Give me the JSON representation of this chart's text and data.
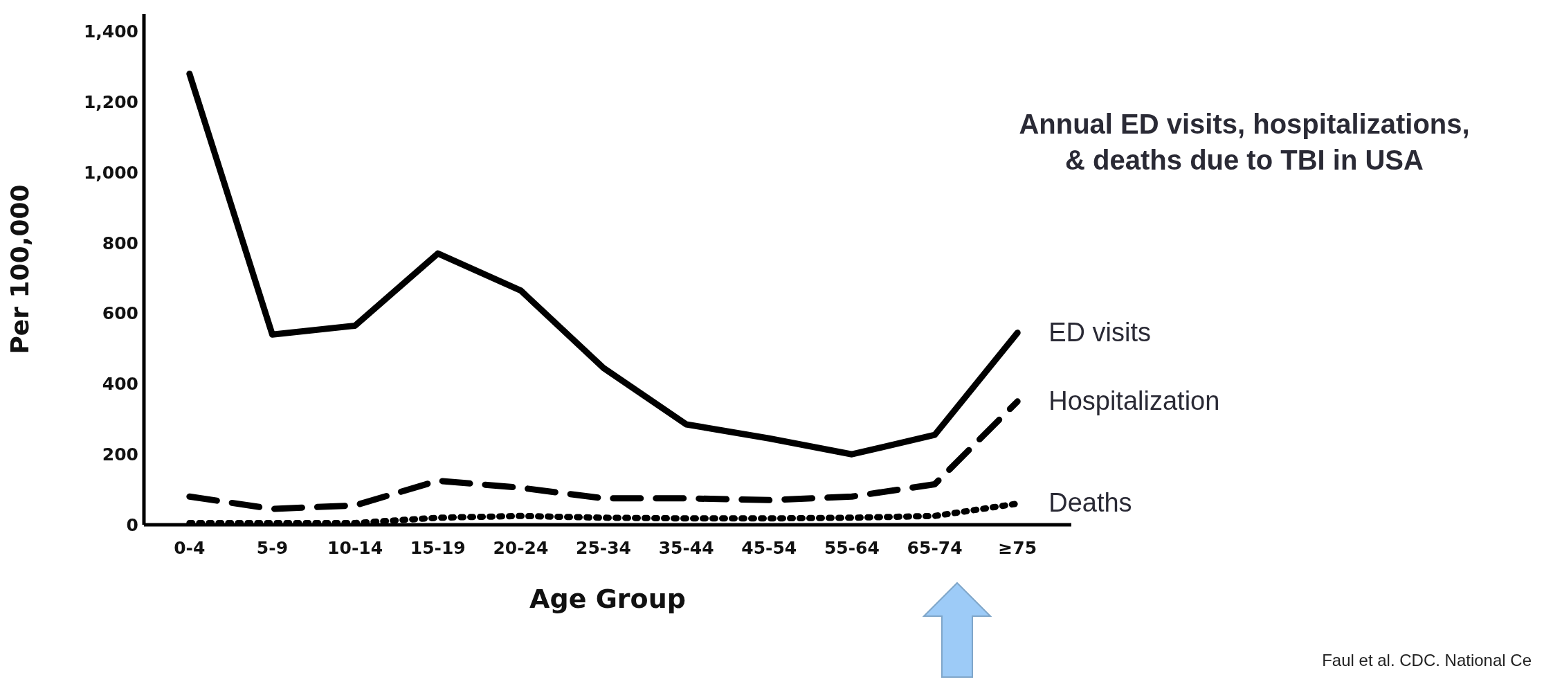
{
  "chart_data": {
    "type": "line",
    "title": "Annual ED visits, hospitalizations,\n& deaths due to TBI in USA",
    "xlabel": "Age Group",
    "ylabel": "Per 100,000",
    "categories": [
      "0-4",
      "5-9",
      "10-14",
      "15-19",
      "20-24",
      "25-34",
      "35-44",
      "45-54",
      "55-64",
      "65-74",
      "≥75"
    ],
    "series": [
      {
        "name": "ED visits",
        "color": "#000000",
        "line_style": "solid",
        "values": [
          1280,
          540,
          565,
          770,
          665,
          445,
          285,
          245,
          200,
          255,
          545
        ]
      },
      {
        "name": "Hospitalization",
        "color": "#000000",
        "line_style": "dashed",
        "values": [
          80,
          45,
          55,
          125,
          105,
          75,
          75,
          70,
          80,
          115,
          350
        ]
      },
      {
        "name": "Deaths",
        "color": "#000000",
        "line_style": "dotted",
        "values": [
          5,
          5,
          5,
          20,
          25,
          20,
          18,
          18,
          20,
          25,
          60
        ]
      }
    ],
    "ylim": [
      0,
      1450
    ],
    "yticks": [
      0,
      {
        "value": 200,
        "label": "200"
      },
      {
        "value": 400,
        "label": "400"
      },
      {
        "value": 600,
        "label": "600"
      },
      {
        "value": 800,
        "label": "800"
      },
      {
        "value": 1000,
        "label": "1,000"
      },
      {
        "value": 1200,
        "label": "1,200"
      },
      {
        "value": 1400,
        "label": "1,400"
      }
    ],
    "grid": false,
    "marker": "none",
    "annotations": [
      "Faul et al. CDC. National Ce"
    ]
  }
}
